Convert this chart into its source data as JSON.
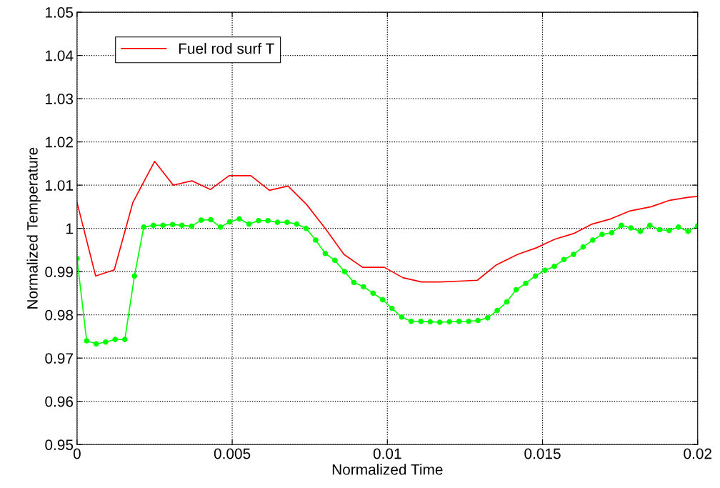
{
  "chart_data": {
    "type": "line",
    "xlabel": "Normalized Time",
    "ylabel": "Normalized Temperature",
    "xlim": [
      0,
      0.02
    ],
    "ylim": [
      0.95,
      1.05
    ],
    "xticks": [
      {
        "value": 0,
        "label": "0"
      },
      {
        "value": 0.005,
        "label": "0.005"
      },
      {
        "value": 0.01,
        "label": "0.01"
      },
      {
        "value": 0.015,
        "label": "0.015"
      },
      {
        "value": 0.02,
        "label": "0.02"
      }
    ],
    "yticks": [
      {
        "value": 0.95,
        "label": "0.95"
      },
      {
        "value": 0.96,
        "label": "0.96"
      },
      {
        "value": 0.97,
        "label": "0.97"
      },
      {
        "value": 0.98,
        "label": "0.98"
      },
      {
        "value": 0.99,
        "label": "0.99"
      },
      {
        "value": 1.0,
        "label": "1"
      },
      {
        "value": 1.01,
        "label": "1.01"
      },
      {
        "value": 1.02,
        "label": "1.02"
      },
      {
        "value": 1.03,
        "label": "1.03"
      },
      {
        "value": 1.04,
        "label": "1.04"
      },
      {
        "value": 1.05,
        "label": "1.05"
      }
    ],
    "grid": true,
    "legend": "top left",
    "series": [
      {
        "name": "Fuel rod surf T",
        "color": "#ff0000",
        "marker": "none",
        "x": [
          0,
          0.0006,
          0.0012,
          0.0018,
          0.0025,
          0.0031,
          0.0037,
          0.0043,
          0.0049,
          0.0056,
          0.0062,
          0.0068,
          0.0074,
          0.008,
          0.0086,
          0.0092,
          0.0099,
          0.0105,
          0.0111,
          0.0117,
          0.0123,
          0.0129,
          0.0135,
          0.0142,
          0.0148,
          0.0154,
          0.016,
          0.0166,
          0.0172,
          0.0178,
          0.0185,
          0.0191,
          0.0197,
          0.02
        ],
        "values": [
          1.006,
          0.989,
          0.9904,
          1.006,
          1.0155,
          1.01,
          1.011,
          1.009,
          1.0122,
          1.0122,
          1.0088,
          1.0098,
          1.0055,
          1.0,
          0.994,
          0.991,
          0.991,
          0.9886,
          0.9876,
          0.9876,
          0.9878,
          0.988,
          0.9915,
          0.994,
          0.9955,
          0.9975,
          0.9988,
          1.001,
          1.0022,
          1.004,
          1.005,
          1.0065,
          1.0072,
          1.0074
        ]
      },
      {
        "color": "#00ff00",
        "marker": "circle",
        "x": [
          0,
          0.00031,
          0.00062,
          0.00092,
          0.00123,
          0.00154,
          0.00185,
          0.00215,
          0.00246,
          0.00277,
          0.00308,
          0.00338,
          0.00369,
          0.004,
          0.00431,
          0.00462,
          0.00492,
          0.00523,
          0.00554,
          0.00585,
          0.00615,
          0.00646,
          0.00677,
          0.00708,
          0.00738,
          0.00769,
          0.008,
          0.00831,
          0.00862,
          0.00892,
          0.00923,
          0.00954,
          0.00985,
          0.01015,
          0.01046,
          0.01077,
          0.01108,
          0.01138,
          0.01169,
          0.012,
          0.01231,
          0.01262,
          0.01292,
          0.01323,
          0.01354,
          0.01385,
          0.01415,
          0.01446,
          0.01477,
          0.01508,
          0.01538,
          0.01569,
          0.016,
          0.01631,
          0.01662,
          0.01692,
          0.01723,
          0.01754,
          0.01785,
          0.01815,
          0.01846,
          0.01877,
          0.01908,
          0.01938,
          0.01969,
          0.02
        ],
        "values": [
          0.993,
          0.974,
          0.9733,
          0.9737,
          0.9743,
          0.9743,
          0.989,
          1.0003,
          1.0007,
          1.0007,
          1.0009,
          1.0007,
          1.0005,
          1.0019,
          1.002,
          1.0003,
          1.0015,
          1.0022,
          1.001,
          1.0018,
          1.0018,
          1.0014,
          1.0014,
          1.001,
          1.0,
          0.9973,
          0.9942,
          0.9926,
          0.99,
          0.9875,
          0.9865,
          0.985,
          0.9835,
          0.9815,
          0.9795,
          0.9785,
          0.9785,
          0.9784,
          0.9783,
          0.9784,
          0.9785,
          0.9785,
          0.9787,
          0.9793,
          0.981,
          0.983,
          0.9858,
          0.9873,
          0.989,
          0.9903,
          0.9912,
          0.9928,
          0.994,
          0.9957,
          0.9973,
          0.9986,
          0.999,
          1.0007,
          1.0001,
          0.9993,
          1.0007,
          0.9997,
          0.9995,
          1.0003,
          0.9993,
          1.0006
        ]
      }
    ]
  }
}
